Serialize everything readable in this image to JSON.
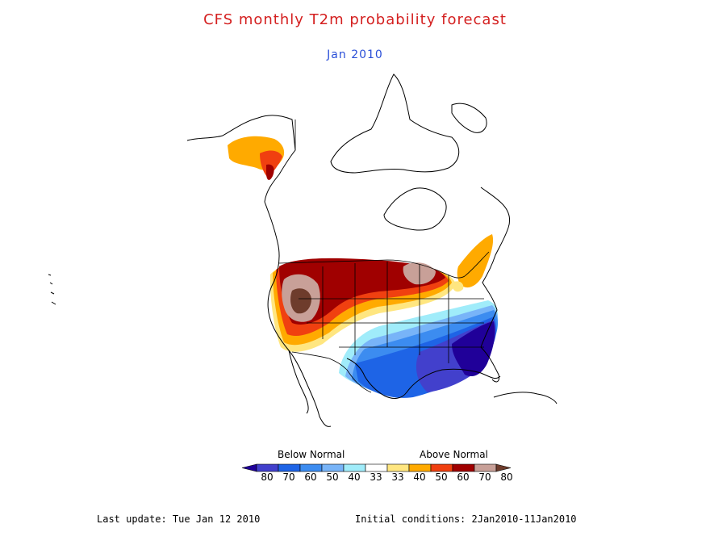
{
  "header": {
    "title": "CFS monthly T2m probability forecast",
    "subtitle": "Jan 2010",
    "title_color": "#d42020",
    "subtitle_color": "#2a4fd8"
  },
  "legend": {
    "below_label": "Below Normal",
    "above_label": "Above Normal",
    "tick_labels": [
      "80",
      "70",
      "60",
      "50",
      "40",
      "33",
      "33",
      "40",
      "50",
      "60",
      "70",
      "80"
    ],
    "colors": [
      "#200099",
      "#4240cc",
      "#1e64e6",
      "#3c8cf0",
      "#78b4f8",
      "#a0ecfa",
      "#ffffff",
      "#ffe680",
      "#ffaa00",
      "#f04010",
      "#a00000",
      "#c8a098",
      "#6e3c2c"
    ]
  },
  "footer": {
    "last_update": "Last update: Tue Jan 12 2010",
    "initial_conditions": "Initial conditions: 2Jan2010-11Jan2010"
  }
}
